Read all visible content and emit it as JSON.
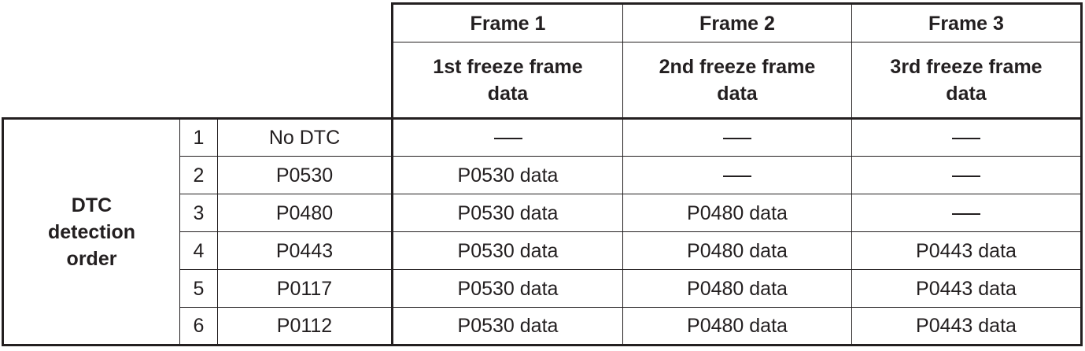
{
  "header": {
    "frames": [
      {
        "name": "Frame 1",
        "description": "1st freeze frame data"
      },
      {
        "name": "Frame 2",
        "description": "2nd freeze frame data"
      },
      {
        "name": "Frame 3",
        "description": "3rd freeze frame data"
      }
    ]
  },
  "group_label_lines": [
    "DTC",
    "detection",
    "order"
  ],
  "empty_cell_symbol": "—",
  "rows": [
    {
      "order": "1",
      "dtc": "No DTC",
      "frame1": "—",
      "frame2": "—",
      "frame3": "—"
    },
    {
      "order": "2",
      "dtc": "P0530",
      "frame1": "P0530 data",
      "frame2": "—",
      "frame3": "—"
    },
    {
      "order": "3",
      "dtc": "P0480",
      "frame1": "P0530 data",
      "frame2": "P0480 data",
      "frame3": "—"
    },
    {
      "order": "4",
      "dtc": "P0443",
      "frame1": "P0530 data",
      "frame2": "P0480 data",
      "frame3": "P0443 data"
    },
    {
      "order": "5",
      "dtc": "P0117",
      "frame1": "P0530 data",
      "frame2": "P0480 data",
      "frame3": "P0443 data"
    },
    {
      "order": "6",
      "dtc": "P0112",
      "frame1": "P0530 data",
      "frame2": "P0480 data",
      "frame3": "P0443 data"
    }
  ]
}
